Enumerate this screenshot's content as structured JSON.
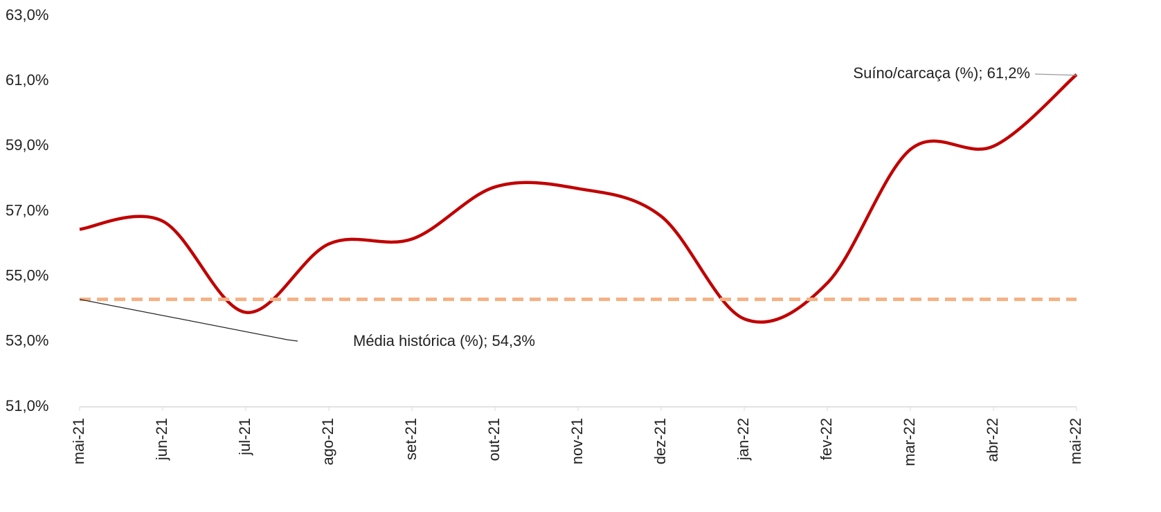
{
  "chart_data": {
    "type": "line",
    "categories": [
      "mai-21",
      "jun-21",
      "jul-21",
      "ago-21",
      "set-21",
      "out-21",
      "nov-21",
      "dez-21",
      "jan-22",
      "fev-22",
      "mar-22",
      "abr-22",
      "mai-22"
    ],
    "series": [
      {
        "label": "Suíno/carcaça (%); 61,2%",
        "color": "#c00000",
        "dashed": false,
        "values": [
          56.45,
          56.7,
          53.9,
          56.0,
          56.15,
          57.75,
          57.7,
          56.85,
          53.7,
          54.8,
          58.9,
          59.0,
          61.2
        ]
      },
      {
        "label": "Média histórica (%); 54,3%",
        "color": "#f4b183",
        "dashed": true,
        "values": [
          54.3,
          54.3,
          54.3,
          54.3,
          54.3,
          54.3,
          54.3,
          54.3,
          54.3,
          54.3,
          54.3,
          54.3,
          54.3
        ]
      }
    ],
    "ylim": [
      51,
      63
    ],
    "yticks": [
      {
        "value": 51,
        "label": "51,0%"
      },
      {
        "value": 53,
        "label": "53,0%"
      },
      {
        "value": 55,
        "label": "55,0%"
      },
      {
        "value": 57,
        "label": "57,0%"
      },
      {
        "value": 59,
        "label": "59,0%"
      },
      {
        "value": 61,
        "label": "61,0%"
      },
      {
        "value": 63,
        "label": "63,0%"
      }
    ],
    "grid": false
  }
}
